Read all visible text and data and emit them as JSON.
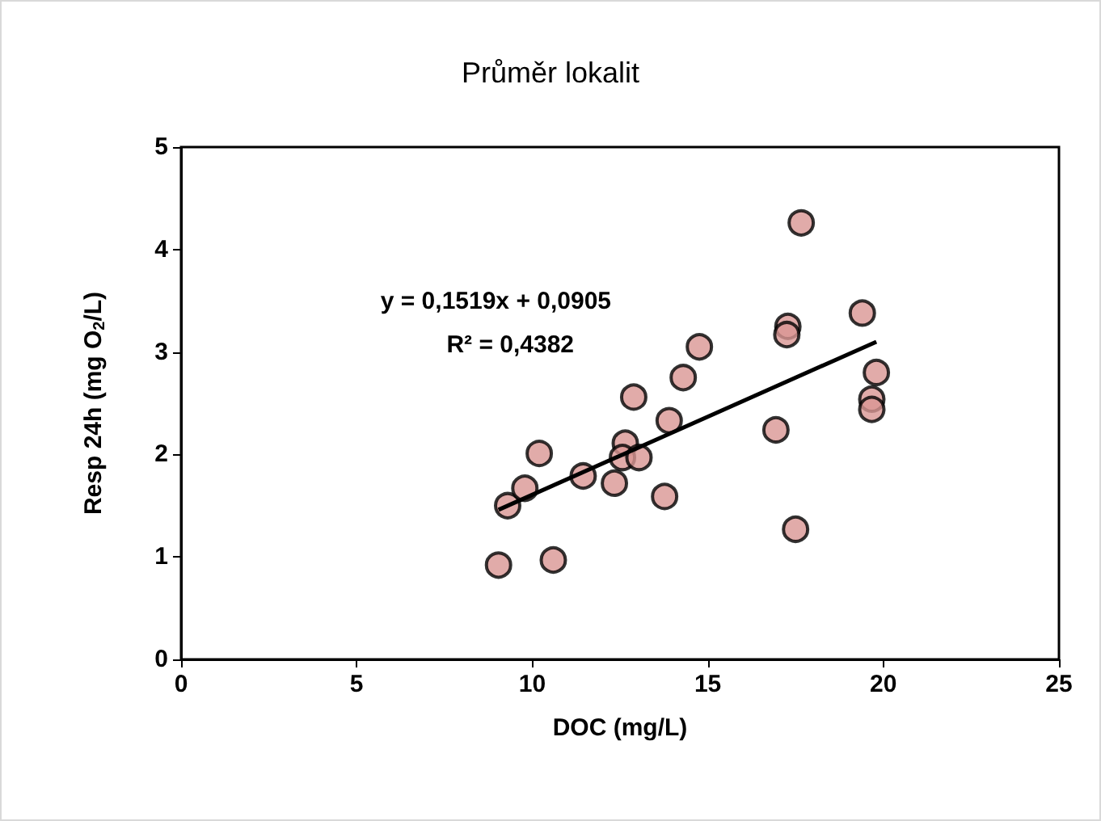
{
  "chart_data": {
    "type": "scatter",
    "title": "Průměr lokalit",
    "xlabel": "DOC (mg/L)",
    "ylabel": "Resp 24h (mg O$_{2}$/L)",
    "annotations": [
      "y = 0,1519x + 0,0905",
      "R² = 0,4382"
    ],
    "xlim": [
      0,
      25
    ],
    "xticks": [
      0,
      5,
      10,
      15,
      20,
      25
    ],
    "ylim": [
      0,
      5
    ],
    "yticks": [
      0,
      1,
      2,
      3,
      4,
      5
    ],
    "grid": false,
    "marker": "circle",
    "series": [
      {
        "color": "#d99694",
        "x": [
          9.04,
          10.6,
          9.3,
          9.79,
          10.2,
          11.45,
          12.34,
          12.65,
          12.57,
          13.04,
          12.89,
          13.77,
          13.9,
          14.3,
          14.76,
          16.94,
          17.5,
          17.28,
          17.25,
          17.66,
          19.4,
          19.8,
          19.67,
          19.67
        ],
        "values": [
          0.92,
          0.97,
          1.5,
          1.67,
          2.01,
          1.79,
          1.72,
          2.11,
          1.97,
          1.97,
          2.56,
          1.59,
          2.33,
          2.75,
          3.05,
          2.24,
          1.27,
          3.25,
          3.17,
          4.26,
          3.38,
          2.8,
          2.54,
          2.44
        ]
      },
      {
        "type": "line",
        "color": "#000000",
        "marker": "none",
        "line_style": "solid",
        "x": [
          9.04,
          19.8
        ],
        "values": [
          1.46,
          3.1
        ]
      }
    ]
  }
}
